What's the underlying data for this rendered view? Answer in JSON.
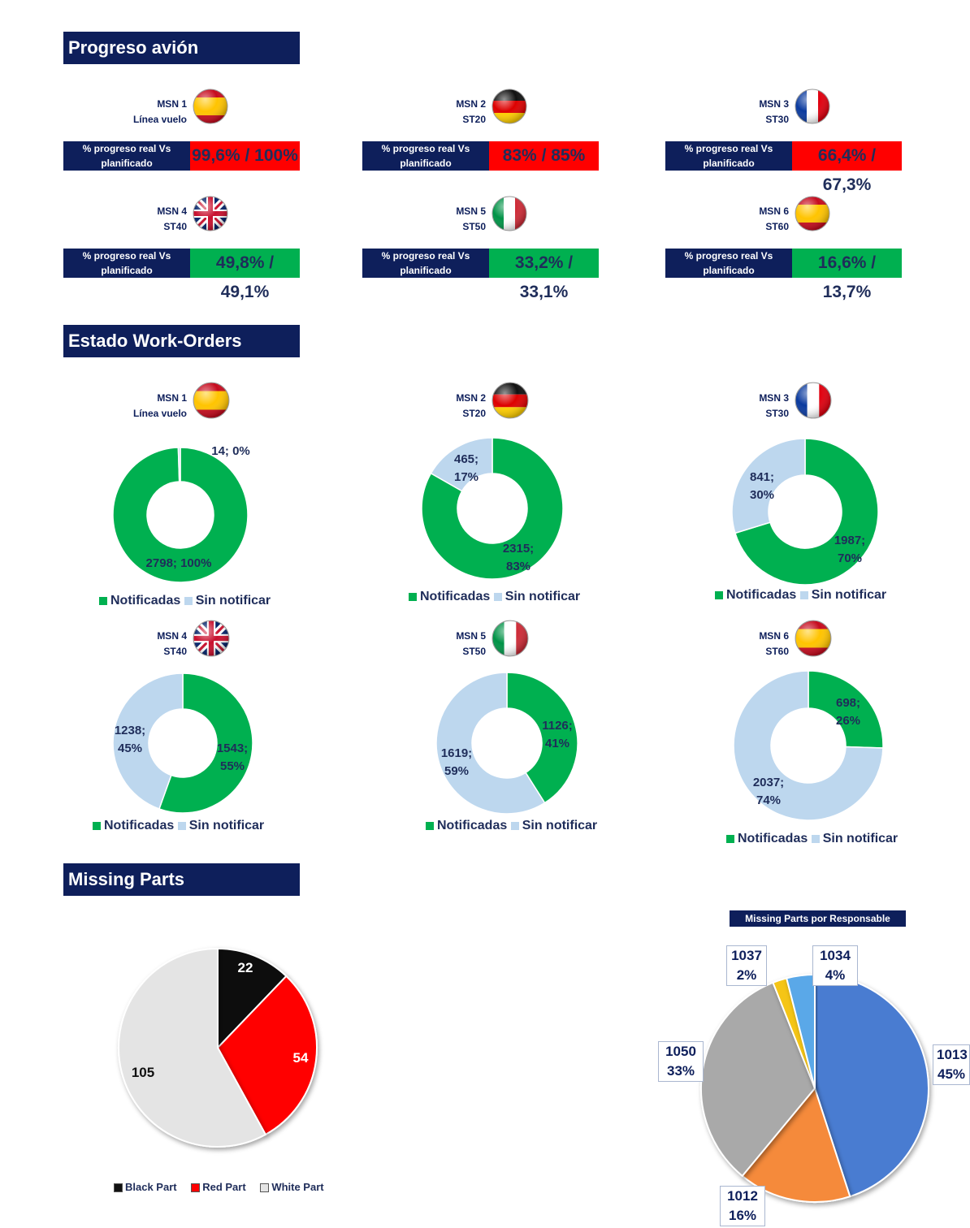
{
  "sections": {
    "progress_title": "Progreso avión",
    "workorders_title": "Estado Work-Orders",
    "missing_title": "Missing Parts"
  },
  "progress_cards": [
    {
      "msn": "MSN 1",
      "line": "Línea vuelo",
      "flag": "spain-flag-icon",
      "label": "% progreso real Vs planificado",
      "value": "99,6% / 100%",
      "color": "#ff0000"
    },
    {
      "msn": "MSN 2",
      "line": "ST20",
      "flag": "germany-flag-icon",
      "label": "% progreso real Vs planificado",
      "value": "83% / 85%",
      "color": "#ff0000"
    },
    {
      "msn": "MSN 3",
      "line": "ST30",
      "flag": "france-flag-icon",
      "label": "% progreso real Vs planificado",
      "value": "66,4% / 67,3%",
      "color": "#ff0000"
    },
    {
      "msn": "MSN 4",
      "line": "ST40",
      "flag": "uk-flag-icon",
      "label": "% progreso real Vs planificado",
      "value": "49,8% / 49,1%",
      "color": "#00b050"
    },
    {
      "msn": "MSN 5",
      "line": "ST50",
      "flag": "italy-flag-icon",
      "label": "% progreso real Vs planificado",
      "value": "33,2% / 33,1%",
      "color": "#00b050"
    },
    {
      "msn": "MSN 6",
      "line": "ST60",
      "flag": "spain-flag-icon",
      "label": "% progreso real Vs planificado",
      "value": "16,6% / 13,7%",
      "color": "#00b050"
    }
  ],
  "legend": {
    "notified": "Notificadas",
    "not_notified": "Sin notificar"
  },
  "colors": {
    "notified": "#00b050",
    "not_notified": "#bdd7ee",
    "black": "#111111",
    "red": "#ff0000",
    "white": "#e4e4e4",
    "r1013": "#4a7bd1",
    "r1012": "#f58a3a",
    "r1050": "#a9a9a9",
    "r1037": "#f5c518",
    "r1034": "#5aa8e8"
  },
  "chart_data": [
    {
      "type": "donut",
      "msn": "MSN 1",
      "line": "Línea vuelo",
      "flag": "spain-flag-icon",
      "categories": [
        "Notificadas",
        "Sin notificar"
      ],
      "values": [
        2798,
        14
      ],
      "labels": [
        "2798; 100%",
        "14; 0%"
      ]
    },
    {
      "type": "donut",
      "msn": "MSN 2",
      "line": "ST20",
      "flag": "germany-flag-icon",
      "categories": [
        "Notificadas",
        "Sin notificar"
      ],
      "values": [
        2315,
        465
      ],
      "labels": [
        "2315;|83%",
        "465;|17%"
      ]
    },
    {
      "type": "donut",
      "msn": "MSN 3",
      "line": "ST30",
      "flag": "france-flag-icon",
      "categories": [
        "Notificadas",
        "Sin notificar"
      ],
      "values": [
        1987,
        841
      ],
      "labels": [
        "1987;|70%",
        "841;|30%"
      ]
    },
    {
      "type": "donut",
      "msn": "MSN 4",
      "line": "ST40",
      "flag": "uk-flag-icon",
      "categories": [
        "Notificadas",
        "Sin notificar"
      ],
      "values": [
        1543,
        1238
      ],
      "labels": [
        "1543;|55%",
        "1238;|45%"
      ]
    },
    {
      "type": "donut",
      "msn": "MSN 5",
      "line": "ST50",
      "flag": "italy-flag-icon",
      "categories": [
        "Notificadas",
        "Sin notificar"
      ],
      "values": [
        1126,
        1619
      ],
      "labels": [
        "1126;|41%",
        "1619;|59%"
      ]
    },
    {
      "type": "donut",
      "msn": "MSN 6",
      "line": "ST60",
      "flag": "spain-flag-icon",
      "categories": [
        "Notificadas",
        "Sin notificar"
      ],
      "values": [
        698,
        2037
      ],
      "labels": [
        "698;|26%",
        "2037;|74%"
      ]
    },
    {
      "type": "pie",
      "categories": [
        "Black Part",
        "Red Part",
        "White Part"
      ],
      "values": [
        22,
        54,
        105
      ],
      "labels": [
        "22",
        "54",
        "105"
      ]
    },
    {
      "type": "pie",
      "title": "Missing Parts por Responsable",
      "categories": [
        "1013",
        "1012",
        "1050",
        "1037",
        "1034"
      ],
      "values": [
        45,
        16,
        33,
        2,
        4
      ],
      "labels": [
        "1013|45%",
        "1012|16%",
        "1050|33%",
        "1037|2%",
        "1034|4%"
      ]
    }
  ]
}
